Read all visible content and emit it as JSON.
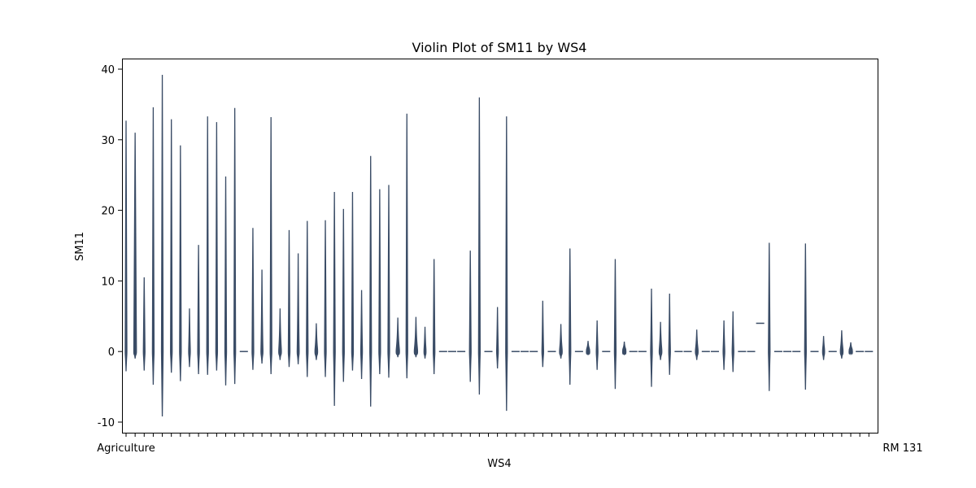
{
  "chart_data": {
    "type": "violin",
    "title": "Violin Plot of SM11 by WS4",
    "xlabel": "WS4",
    "ylabel": "SM11",
    "ylim": [
      -11.5,
      41.5
    ],
    "yticks": [
      -10,
      0,
      10,
      20,
      30,
      40
    ],
    "grid": false,
    "violin_color": "#3a4c66",
    "first_category_label": "Agriculture",
    "last_category_label": "RM 131",
    "violins": [
      {
        "x": 1,
        "min": -2.8,
        "max": 32.7,
        "w": 0.35
      },
      {
        "x": 2,
        "min": -1.0,
        "max": 31.0,
        "w": 0.8
      },
      {
        "x": 3,
        "min": -2.7,
        "max": 10.5,
        "w": 0.35
      },
      {
        "x": 4,
        "min": -4.7,
        "max": 34.6,
        "w": 0.35
      },
      {
        "x": 5,
        "min": -9.2,
        "max": 39.2,
        "w": 0.4
      },
      {
        "x": 6,
        "min": -3.0,
        "max": 32.9,
        "w": 0.35
      },
      {
        "x": 7,
        "min": -4.2,
        "max": 29.2,
        "w": 0.35
      },
      {
        "x": 8,
        "min": -2.2,
        "max": 6.1,
        "w": 0.35
      },
      {
        "x": 9,
        "min": -3.2,
        "max": 15.1,
        "w": 0.35
      },
      {
        "x": 10,
        "min": -3.3,
        "max": 33.3,
        "w": 0.35
      },
      {
        "x": 11,
        "min": -2.7,
        "max": 32.5,
        "w": 0.35
      },
      {
        "x": 12,
        "min": -4.8,
        "max": 24.8,
        "w": 0.35
      },
      {
        "x": 13,
        "min": -4.6,
        "max": 34.5,
        "w": 0.35
      },
      {
        "x": 14,
        "min": 0,
        "max": 0,
        "w": 1.0
      },
      {
        "x": 15,
        "min": -2.6,
        "max": 17.5,
        "w": 0.35
      },
      {
        "x": 16,
        "min": -1.7,
        "max": 11.6,
        "w": 0.6
      },
      {
        "x": 17,
        "min": -3.2,
        "max": 33.2,
        "w": 0.35
      },
      {
        "x": 18,
        "min": -1.2,
        "max": 6.1,
        "w": 0.8
      },
      {
        "x": 19,
        "min": -2.2,
        "max": 17.2,
        "w": 0.35
      },
      {
        "x": 20,
        "min": -1.8,
        "max": 13.9,
        "w": 0.6
      },
      {
        "x": 21,
        "min": -3.6,
        "max": 18.5,
        "w": 0.35
      },
      {
        "x": 22,
        "min": -1.2,
        "max": 4.0,
        "w": 0.8
      },
      {
        "x": 23,
        "min": -3.6,
        "max": 18.6,
        "w": 0.35
      },
      {
        "x": 24,
        "min": -7.7,
        "max": 22.6,
        "w": 0.35
      },
      {
        "x": 25,
        "min": -4.3,
        "max": 20.2,
        "w": 0.35
      },
      {
        "x": 26,
        "min": -2.7,
        "max": 22.6,
        "w": 0.35
      },
      {
        "x": 27,
        "min": -3.9,
        "max": 8.7,
        "w": 0.35
      },
      {
        "x": 28,
        "min": -7.8,
        "max": 27.7,
        "w": 0.35
      },
      {
        "x": 29,
        "min": -3.2,
        "max": 23.0,
        "w": 0.35
      },
      {
        "x": 30,
        "min": -3.7,
        "max": 23.6,
        "w": 0.35
      },
      {
        "x": 31,
        "min": -0.8,
        "max": 4.8,
        "w": 1.0
      },
      {
        "x": 32,
        "min": -3.8,
        "max": 33.7,
        "w": 0.35
      },
      {
        "x": 33,
        "min": -0.8,
        "max": 4.9,
        "w": 1.0
      },
      {
        "x": 34,
        "min": -1.0,
        "max": 3.5,
        "w": 0.6
      },
      {
        "x": 35,
        "min": -3.2,
        "max": 13.1,
        "w": 0.35
      },
      {
        "x": 36,
        "min": 0,
        "max": 0,
        "w": 1.0
      },
      {
        "x": 37,
        "min": 0,
        "max": 0,
        "w": 1.0
      },
      {
        "x": 38,
        "min": 0,
        "max": 0,
        "w": 1.0
      },
      {
        "x": 39,
        "min": -4.3,
        "max": 14.3,
        "w": 0.35
      },
      {
        "x": 40,
        "min": -6.1,
        "max": 36.0,
        "w": 0.35
      },
      {
        "x": 41,
        "min": 0,
        "max": 0,
        "w": 1.0
      },
      {
        "x": 42,
        "min": -2.4,
        "max": 6.3,
        "w": 0.35
      },
      {
        "x": 43,
        "min": -8.4,
        "max": 33.3,
        "w": 0.35
      },
      {
        "x": 44,
        "min": 0,
        "max": 0,
        "w": 1.0
      },
      {
        "x": 45,
        "min": 0,
        "max": 0,
        "w": 1.0
      },
      {
        "x": 46,
        "min": 0,
        "max": 0,
        "w": 1.0
      },
      {
        "x": 47,
        "min": -2.2,
        "max": 7.2,
        "w": 0.35
      },
      {
        "x": 48,
        "min": 0,
        "max": 0,
        "w": 1.0
      },
      {
        "x": 49,
        "min": -1.0,
        "max": 3.9,
        "w": 0.8
      },
      {
        "x": 50,
        "min": -4.7,
        "max": 14.6,
        "w": 0.35
      },
      {
        "x": 51,
        "min": 0,
        "max": 0,
        "w": 1.0
      },
      {
        "x": 52,
        "min": -0.5,
        "max": 1.5,
        "w": 1.0
      },
      {
        "x": 53,
        "min": -2.6,
        "max": 4.4,
        "w": 0.35
      },
      {
        "x": 54,
        "min": 0,
        "max": 0,
        "w": 1.0
      },
      {
        "x": 55,
        "min": -5.3,
        "max": 13.1,
        "w": 0.35
      },
      {
        "x": 56,
        "min": -0.5,
        "max": 1.4,
        "w": 1.0
      },
      {
        "x": 57,
        "min": 0,
        "max": 0,
        "w": 1.0
      },
      {
        "x": 58,
        "min": 0,
        "max": 0,
        "w": 1.0
      },
      {
        "x": 59,
        "min": -5.0,
        "max": 8.9,
        "w": 0.35
      },
      {
        "x": 60,
        "min": -1.2,
        "max": 4.2,
        "w": 0.8
      },
      {
        "x": 61,
        "min": -3.3,
        "max": 8.2,
        "w": 0.35
      },
      {
        "x": 62,
        "min": 0,
        "max": 0,
        "w": 1.0
      },
      {
        "x": 63,
        "min": 0,
        "max": 0,
        "w": 1.0
      },
      {
        "x": 64,
        "min": -1.2,
        "max": 3.1,
        "w": 0.8
      },
      {
        "x": 65,
        "min": 0,
        "max": 0,
        "w": 1.0
      },
      {
        "x": 66,
        "min": 0,
        "max": 0,
        "w": 1.0
      },
      {
        "x": 67,
        "min": -2.6,
        "max": 4.4,
        "w": 0.35
      },
      {
        "x": 68,
        "min": -2.9,
        "max": 5.7,
        "w": 0.35
      },
      {
        "x": 69,
        "min": 0,
        "max": 0,
        "w": 1.0
      },
      {
        "x": 70,
        "min": 0,
        "max": 0,
        "w": 1.0
      },
      {
        "x": 71,
        "min": 4.0,
        "max": 4.0,
        "w": 1.0
      },
      {
        "x": 72,
        "min": -5.6,
        "max": 15.4,
        "w": 0.35
      },
      {
        "x": 73,
        "min": 0,
        "max": 0,
        "w": 1.0
      },
      {
        "x": 74,
        "min": 0,
        "max": 0,
        "w": 1.0
      },
      {
        "x": 75,
        "min": 0,
        "max": 0,
        "w": 1.0
      },
      {
        "x": 76,
        "min": -5.4,
        "max": 15.3,
        "w": 0.35
      },
      {
        "x": 77,
        "min": 0,
        "max": 0,
        "w": 1.0
      },
      {
        "x": 78,
        "min": -1.2,
        "max": 2.2,
        "w": 0.6
      },
      {
        "x": 79,
        "min": 0,
        "max": 0,
        "w": 1.0
      },
      {
        "x": 80,
        "min": -1.0,
        "max": 3.0,
        "w": 0.8
      },
      {
        "x": 81,
        "min": -0.3,
        "max": 1.3,
        "w": 1.0
      },
      {
        "x": 82,
        "min": 0,
        "max": 0,
        "w": 1.0
      },
      {
        "x": 83,
        "min": 0,
        "max": 0,
        "w": 1.0
      }
    ]
  }
}
